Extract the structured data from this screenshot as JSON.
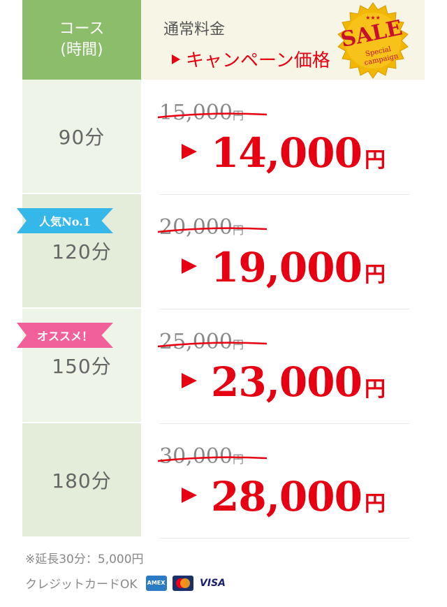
{
  "header": {
    "course_label_1": "コース",
    "course_label_2": "(時間)",
    "normal_price_label": "通常料金",
    "campaign_price_label": "キャンペーン価格"
  },
  "sale_badge": {
    "stars": "★★★",
    "title": "SALE",
    "sub1": "Special",
    "sub2": "campaign"
  },
  "rows": [
    {
      "duration": "90分",
      "old_price": "15,000",
      "old_yen": "円",
      "new_price": "14,000",
      "new_yen": "円",
      "ribbon": ""
    },
    {
      "duration": "120分",
      "old_price": "20,000",
      "old_yen": "円",
      "new_price": "19,000",
      "new_yen": "円",
      "ribbon": "人気No.1"
    },
    {
      "duration": "150分",
      "old_price": "25,000",
      "old_yen": "円",
      "new_price": "23,000",
      "new_yen": "円",
      "ribbon": "オススメ！"
    },
    {
      "duration": "180分",
      "old_price": "30,000",
      "old_yen": "円",
      "new_price": "28,000",
      "new_yen": "円",
      "ribbon": ""
    }
  ],
  "footer": {
    "extension": "※延長30分：5,000円",
    "credit": "クレジットカードOK",
    "cards": [
      {
        "name": "amex",
        "label": "AMEX"
      },
      {
        "name": "mastercard",
        "label": "MC"
      },
      {
        "name": "visa",
        "label": "VISA"
      }
    ]
  },
  "colors": {
    "header_green": "#8cbd6a",
    "header_cream": "#f7f5e6",
    "accent_red": "#e60012",
    "ribbon_blue": "#35b7ea",
    "ribbon_pink": "#f2609a",
    "sale_gold": "#f2b705"
  }
}
